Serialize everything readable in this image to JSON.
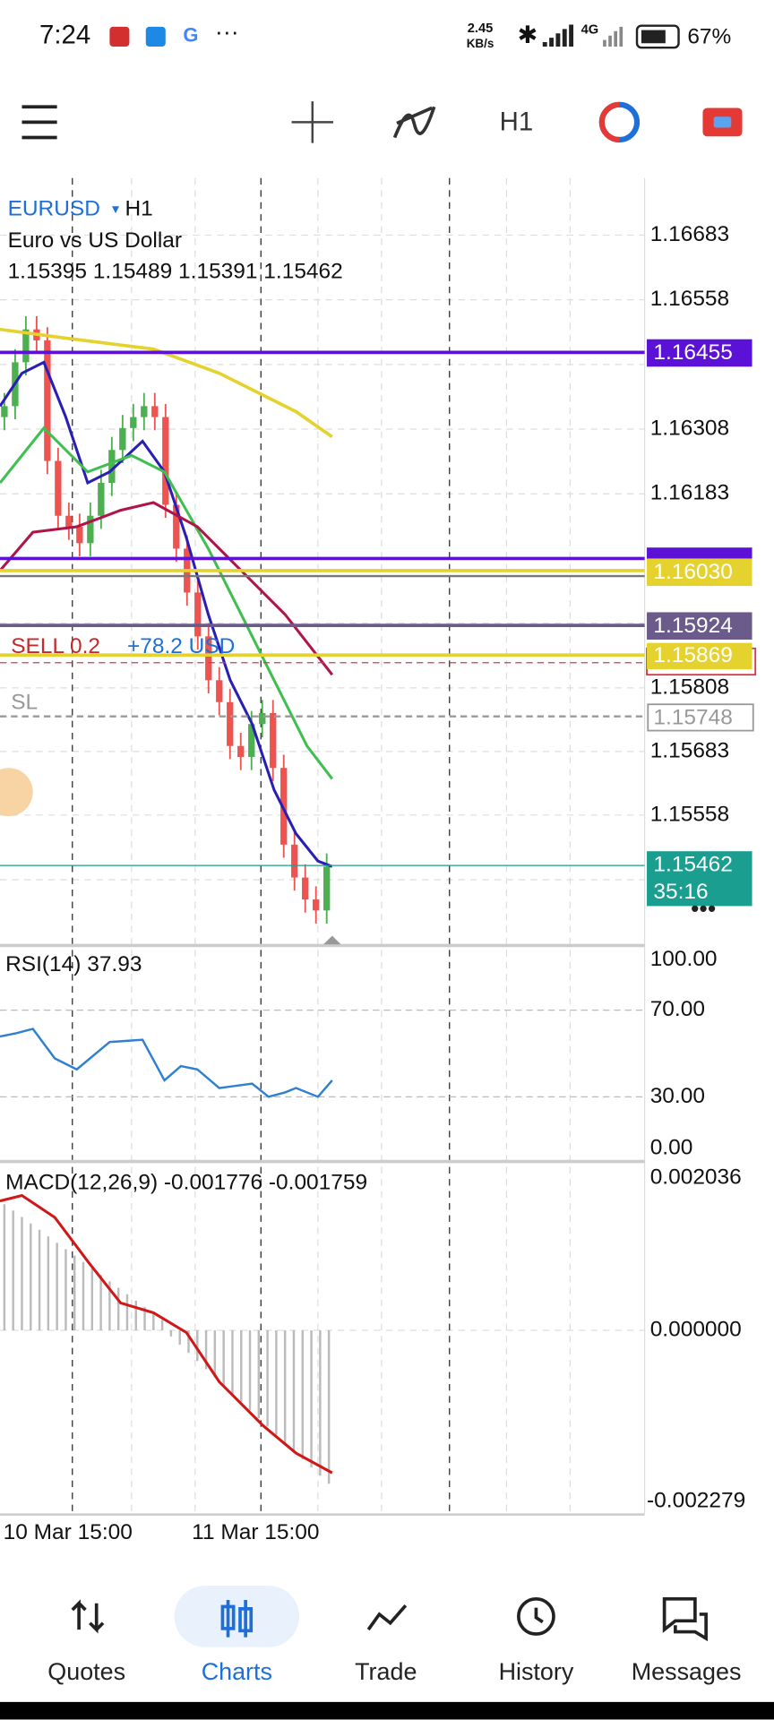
{
  "status_bar": {
    "time": "7:24",
    "net_speed": "2.45",
    "net_unit": "KB/s",
    "network": "4G",
    "battery": "67%"
  },
  "toolbar": {
    "timeframe": "H1"
  },
  "chart": {
    "symbol": "EURUSD",
    "timeframe": "H1",
    "description": "Euro vs US Dollar",
    "ohlc": "1.15395 1.15489 1.15391 1.15462",
    "price_labels": [
      "1.16683",
      "1.16558",
      "1.16308",
      "1.16183",
      "1.15808",
      "1.15683",
      "1.15558"
    ],
    "price_tags": [
      "1.16455",
      "1.16030",
      "1.15924",
      "1.15869",
      "1.15748"
    ],
    "current_price": "1.15462",
    "countdown": "35:16",
    "order_label": "SELL 0.2",
    "order_profit": "+78.2 USD",
    "sl_label": "SL"
  },
  "rsi": {
    "label": "RSI(14) 37.93",
    "levels": [
      "100.00",
      "70.00",
      "30.00",
      "0.00"
    ]
  },
  "macd": {
    "label": "MACD(12,26,9) -0.001776 -0.001759",
    "levels": [
      "0.002036",
      "0.000000",
      "-0.002279"
    ]
  },
  "time_axis": [
    "10 Mar 15:00",
    "11 Mar 15:00"
  ],
  "nav": [
    "Quotes",
    "Charts",
    "Trade",
    "History",
    "Messages"
  ]
}
